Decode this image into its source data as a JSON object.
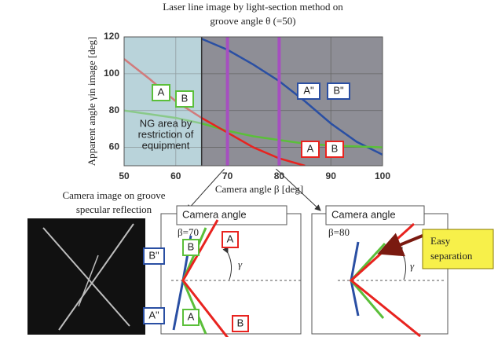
{
  "chart_data": {
    "type": "line",
    "title": [
      "Laser line image by light-section method on",
      "groove angle θ (=50)"
    ],
    "x_label": "Camera angle β  [deg]",
    "y_label": "Apparent angle γin image [deg]",
    "x": [
      50,
      55,
      60,
      65,
      70,
      75,
      80,
      85,
      90,
      95,
      100
    ],
    "series": [
      {
        "color": "#2a4fa3",
        "values": [
          null,
          null,
          null,
          119,
          113,
          105,
          96,
          85,
          73,
          63,
          56
        ]
      },
      {
        "color": "#5bbf3a",
        "values": [
          80,
          78,
          76,
          73,
          69,
          66,
          64,
          62,
          61,
          60.5,
          60
        ]
      },
      {
        "color": "#e8231f",
        "values": [
          108,
          97,
          85,
          76,
          68,
          60,
          54,
          50,
          null,
          null,
          null
        ]
      }
    ],
    "xlim": [
      50,
      100
    ],
    "ylim": [
      50,
      120
    ],
    "xticks": [
      50,
      60,
      70,
      80,
      90,
      100
    ],
    "yticks": [
      60,
      80,
      100,
      120
    ],
    "grid": true,
    "ng_area": {
      "x": [
        50,
        65
      ],
      "text": [
        "NG area by",
        "restriction of",
        "equipment"
      ]
    },
    "markers": {
      "x": [
        70,
        80
      ],
      "color": "#a64fc0"
    },
    "labels": [
      {
        "text": "A",
        "color": "#5bbf3a"
      },
      {
        "text": "B",
        "color": "#5bbf3a"
      },
      {
        "text": "A\"",
        "color": "#2a4fa3"
      },
      {
        "text": "B\"",
        "color": "#2a4fa3"
      },
      {
        "text": "A",
        "color": "#e8231f"
      },
      {
        "text": "B",
        "color": "#e8231f"
      }
    ]
  },
  "camera_image": {
    "caption": [
      "Camera image on groove",
      "specular reflection"
    ]
  },
  "panels": [
    {
      "title": "Camera angle",
      "beta": "β=70",
      "gamma": "γ",
      "labels": [
        "B\"",
        "B",
        "A",
        "A\"",
        "A",
        "B"
      ]
    },
    {
      "title": "Camera angle",
      "beta": "β=80",
      "gamma": "γ",
      "callout": [
        "Easy",
        "separation"
      ]
    }
  ]
}
